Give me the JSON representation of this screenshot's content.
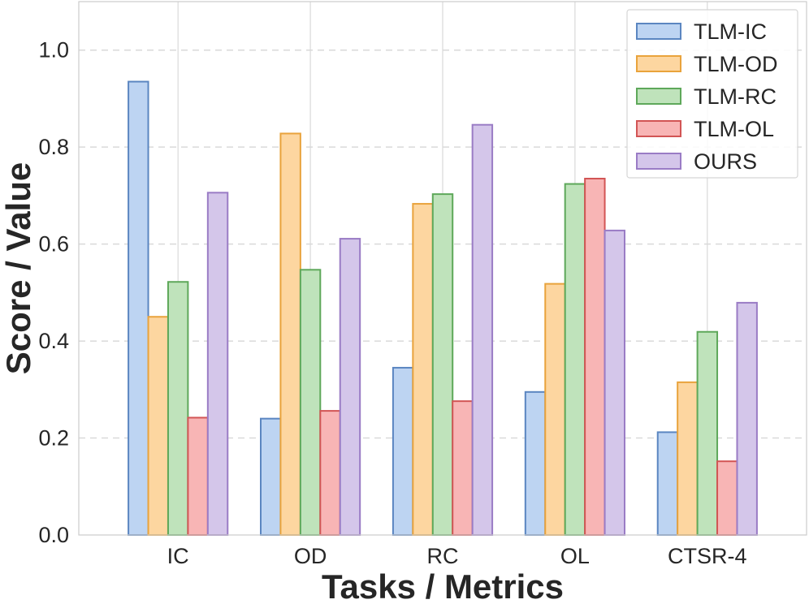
{
  "chart_data": {
    "type": "bar",
    "title": "",
    "xlabel": "Tasks / Metrics",
    "ylabel": "Score / Value",
    "ylim": [
      0,
      1.1
    ],
    "yticks": [
      "0.0",
      "0.2",
      "0.4",
      "0.6",
      "0.8",
      "1.0"
    ],
    "grid": true,
    "legend_position": "top-right",
    "categories": [
      "IC",
      "OD",
      "RC",
      "OL",
      "CTSR-4"
    ],
    "series": [
      {
        "name": "TLM-IC",
        "values": [
          0.935,
          0.24,
          0.345,
          0.295,
          0.212
        ],
        "fill": "#bdd4f2",
        "stroke": "#5b86c1"
      },
      {
        "name": "TLM-OD",
        "values": [
          0.45,
          0.828,
          0.683,
          0.518,
          0.315
        ],
        "fill": "#fdd6a0",
        "stroke": "#e9a33c"
      },
      {
        "name": "TLM-RC",
        "values": [
          0.522,
          0.547,
          0.703,
          0.724,
          0.419
        ],
        "fill": "#bfe3bb",
        "stroke": "#5ea85a"
      },
      {
        "name": "TLM-OL",
        "values": [
          0.242,
          0.256,
          0.276,
          0.735,
          0.152
        ],
        "fill": "#f8b5b5",
        "stroke": "#d25555"
      },
      {
        "name": "OURS",
        "values": [
          0.706,
          0.611,
          0.846,
          0.628,
          0.479
        ],
        "fill": "#d4c6ea",
        "stroke": "#9a7cc5"
      }
    ]
  }
}
